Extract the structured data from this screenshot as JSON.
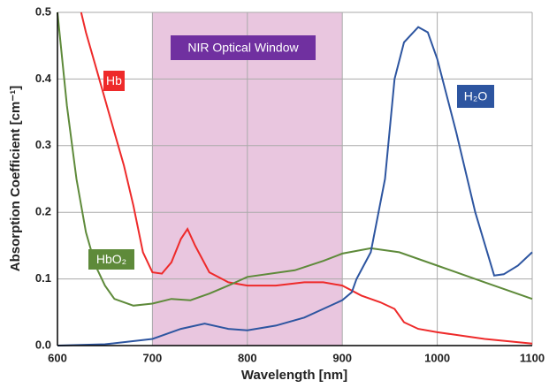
{
  "chart_data": {
    "type": "line",
    "xlabel": "Wavelength [nm]",
    "ylabel": "Absorption Coefficient [cm⁻¹]",
    "xlim": [
      600,
      1100
    ],
    "xticks": [
      600,
      700,
      800,
      900,
      1000,
      1100
    ],
    "ylim": [
      0,
      0.5
    ],
    "yticks": [
      {
        "value": 0,
        "label": "0.0"
      },
      0.1,
      0.2,
      0.3,
      0.4,
      0.5
    ],
    "grid": true,
    "window": {
      "label": "NIR Optical Window",
      "range": [
        700,
        900
      ],
      "color": "#e9c6df",
      "label_color": "#7030a0"
    },
    "series": [
      {
        "name": "Hb",
        "color": "#ee2a2a",
        "x": [
          625,
          630,
          640,
          650,
          660,
          670,
          680,
          690,
          700,
          710,
          720,
          730,
          737,
          745,
          760,
          780,
          800,
          830,
          860,
          880,
          900,
          920,
          940,
          955,
          965,
          980,
          1000,
          1050,
          1100
        ],
        "values": [
          0.5,
          0.47,
          0.42,
          0.37,
          0.32,
          0.27,
          0.21,
          0.14,
          0.11,
          0.108,
          0.125,
          0.16,
          0.175,
          0.15,
          0.11,
          0.095,
          0.09,
          0.09,
          0.095,
          0.095,
          0.09,
          0.075,
          0.065,
          0.055,
          0.035,
          0.025,
          0.02,
          0.01,
          0.003
        ]
      },
      {
        "name": "HbO₂",
        "color": "#5e8a3a",
        "x": [
          600,
          610,
          620,
          630,
          640,
          650,
          660,
          680,
          700,
          720,
          740,
          760,
          780,
          800,
          850,
          880,
          900,
          930,
          960,
          1000,
          1050,
          1100
        ],
        "values": [
          0.5,
          0.36,
          0.25,
          0.17,
          0.12,
          0.09,
          0.07,
          0.06,
          0.063,
          0.07,
          0.068,
          0.078,
          0.09,
          0.103,
          0.113,
          0.127,
          0.138,
          0.146,
          0.14,
          0.12,
          0.095,
          0.07
        ]
      },
      {
        "name": "H₂O",
        "color": "#2d55a0",
        "x": [
          600,
          650,
          700,
          730,
          755,
          780,
          800,
          830,
          860,
          880,
          900,
          910,
          915,
          930,
          945,
          955,
          965,
          980,
          990,
          1000,
          1020,
          1040,
          1060,
          1070,
          1085,
          1100
        ],
        "values": [
          0,
          0.002,
          0.01,
          0.025,
          0.033,
          0.025,
          0.023,
          0.03,
          0.042,
          0.055,
          0.068,
          0.08,
          0.1,
          0.14,
          0.25,
          0.4,
          0.455,
          0.478,
          0.47,
          0.43,
          0.32,
          0.2,
          0.105,
          0.107,
          0.12,
          0.14
        ]
      }
    ]
  }
}
